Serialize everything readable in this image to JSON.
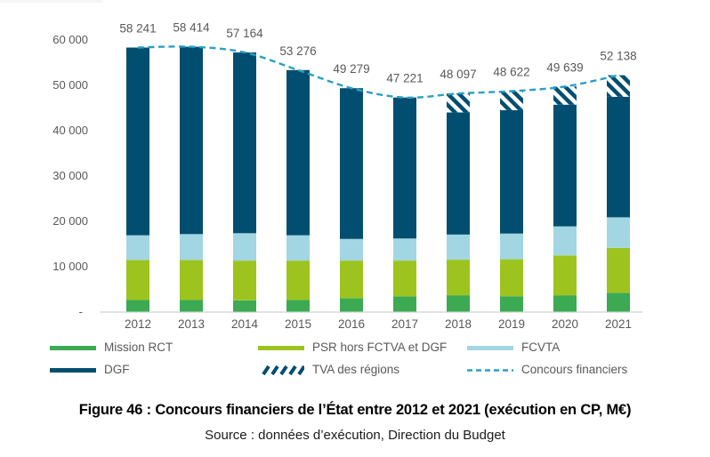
{
  "figure": {
    "caption": "Figure 46 : Concours financiers de l’État entre 2012 et 2021 (exécution en CP, M€)",
    "source": "Source : données d’exécution, Direction du Budget"
  },
  "colors": {
    "mission_rct": "#3CAA53",
    "psr": "#9DC41E",
    "fcvta": "#A3D6E3",
    "dgf": "#024E70",
    "line": "#2A9FC6",
    "axis_text": "#595959",
    "value_label_text": "#595959",
    "axis_line": "#D9D9D9"
  },
  "chart_data": {
    "type": "bar",
    "stacked": true,
    "title": "",
    "xlabel": "",
    "ylabel": "",
    "categories": [
      "2012",
      "2013",
      "2014",
      "2015",
      "2016",
      "2017",
      "2018",
      "2019",
      "2020",
      "2021"
    ],
    "series": [
      {
        "name": "Mission RCT",
        "color": "#3CAA53",
        "hatch": false,
        "values": [
          2600,
          2600,
          2500,
          2600,
          2950,
          3350,
          3600,
          3400,
          3600,
          4150
        ]
      },
      {
        "name": "PSR hors FCTVA et DGF",
        "color": "#9DC41E",
        "hatch": false,
        "values": [
          8800,
          8800,
          8750,
          8650,
          8300,
          7900,
          7850,
          8150,
          8800,
          9900
        ]
      },
      {
        "name": "FCVTA",
        "color": "#A3D6E3",
        "hatch": false,
        "values": [
          5450,
          5700,
          6050,
          5600,
          4800,
          4900,
          5550,
          5650,
          6400,
          6750
        ]
      },
      {
        "name": "DGF",
        "color": "#024E70",
        "hatch": false,
        "values": [
          41391,
          41314,
          39864,
          36426,
          33229,
          31071,
          26947,
          27222,
          26839,
          26588
        ]
      },
      {
        "name": "TVA des régions",
        "color": "#024E70",
        "hatch": true,
        "values": [
          0,
          0,
          0,
          0,
          0,
          0,
          4150,
          4200,
          4000,
          4750
        ]
      }
    ],
    "line": {
      "name": "Concours financiers",
      "color": "#2A9FC6",
      "style": "dashed",
      "values": [
        58241,
        58414,
        57164,
        53276,
        49279,
        47221,
        48097,
        48622,
        49639,
        52138
      ]
    },
    "total_labels": [
      "58 241",
      "58 414",
      "57 164",
      "53 276",
      "49 279",
      "47 221",
      "48 097",
      "48 622",
      "49 639",
      "52 138"
    ],
    "ylim": [
      0,
      60000
    ],
    "grid": false,
    "legend_position": "bottom",
    "yticks": [
      {
        "value": 0,
        "label": "-"
      },
      {
        "value": 10000,
        "label": "10 000"
      },
      {
        "value": 20000,
        "label": "20 000"
      },
      {
        "value": 30000,
        "label": "30 000"
      },
      {
        "value": 40000,
        "label": "40 000"
      },
      {
        "value": 50000,
        "label": "50 000"
      },
      {
        "value": 60000,
        "label": "60 000"
      }
    ]
  },
  "legend": {
    "items": [
      {
        "label": "Mission RCT",
        "swatch": "solid",
        "color": "#3CAA53"
      },
      {
        "label": "PSR hors FCTVA et DGF",
        "swatch": "solid",
        "color": "#9DC41E"
      },
      {
        "label": "FCVTA",
        "swatch": "solid",
        "color": "#A3D6E3"
      },
      {
        "label": "DGF",
        "swatch": "solid",
        "color": "#024E70"
      },
      {
        "label": "TVA des régions",
        "swatch": "hatch",
        "color": "#024E70"
      },
      {
        "label": "Concours financiers",
        "swatch": "dashed-line",
        "color": "#2A9FC6"
      }
    ]
  }
}
